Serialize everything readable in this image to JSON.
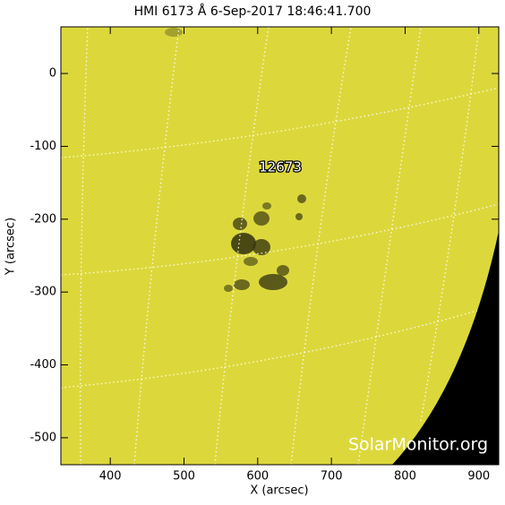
{
  "chart_data": {
    "type": "image",
    "title": "HMI 6173 Å  6-Sep-2017 18:46:41.700",
    "xlabel": "X (arcsec)",
    "ylabel": "Y (arcsec)",
    "xlim": [
      333,
      927
    ],
    "ylim": [
      -537,
      64
    ],
    "xticks": [
      400,
      500,
      600,
      700,
      800,
      900
    ],
    "yticks": [
      0,
      -100,
      -200,
      -300,
      -400,
      -500
    ],
    "annotations": [
      "12673"
    ],
    "watermark": "SolarMonitor.org",
    "color": "#dcd83c"
  }
}
